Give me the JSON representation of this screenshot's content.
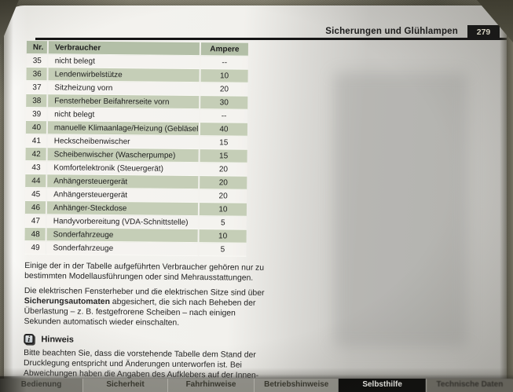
{
  "header": {
    "title": "Sicherungen und Glühlampen",
    "page_number": "279"
  },
  "table": {
    "columns": [
      "Nr.",
      "Verbraucher",
      "Ampere"
    ],
    "rows": [
      {
        "nr": "35",
        "verbraucher": "nicht belegt",
        "ampere": "--"
      },
      {
        "nr": "36",
        "verbraucher": "Lendenwirbelstütze",
        "ampere": "10"
      },
      {
        "nr": "37",
        "verbraucher": "Sitzheizung vorn",
        "ampere": "20"
      },
      {
        "nr": "38",
        "verbraucher": "Fensterheber Beifahrerseite vorn",
        "ampere": "30"
      },
      {
        "nr": "39",
        "verbraucher": "nicht belegt",
        "ampere": "--"
      },
      {
        "nr": "40",
        "verbraucher": "manuelle Klimaanlage/Heizung (Gebläselüfter)",
        "ampere": "40"
      },
      {
        "nr": "41",
        "verbraucher": "Heckscheibenwischer",
        "ampere": "15"
      },
      {
        "nr": "42",
        "verbraucher": "Scheibenwischer (Wascherpumpe)",
        "ampere": "15"
      },
      {
        "nr": "43",
        "verbraucher": "Komfortelektronik (Steuergerät)",
        "ampere": "20"
      },
      {
        "nr": "44",
        "verbraucher": "Anhängersteuergerät",
        "ampere": "20"
      },
      {
        "nr": "45",
        "verbraucher": "Anhängersteuergerät",
        "ampere": "20"
      },
      {
        "nr": "46",
        "verbraucher": "Anhänger-Steckdose",
        "ampere": "10"
      },
      {
        "nr": "47",
        "verbraucher": "Handyvorbereitung (VDA-Schnittstelle)",
        "ampere": "5"
      },
      {
        "nr": "48",
        "verbraucher": "Sonderfahrzeuge",
        "ampere": "10"
      },
      {
        "nr": "49",
        "verbraucher": "Sonderfahrzeuge",
        "ampere": "5"
      }
    ]
  },
  "paragraphs": [
    {
      "lines": [
        [
          {
            "t": "Einige der in der Tabelle aufgeführten Verbraucher gehören nur zu"
          }
        ],
        [
          {
            "t": "bestimmten Modellausführungen oder sind Mehrausstattungen."
          }
        ]
      ]
    },
    {
      "lines": [
        [
          {
            "t": "Die elektrischen Fensterheber und die elektrischen Sitze sind über"
          }
        ],
        [
          {
            "t": "Sicherungsautomaten",
            "b": true
          },
          {
            "t": " abgesichert, die sich nach Beheben der"
          }
        ],
        [
          {
            "t": "Überlastung – z. B. festgefrorene Scheiben – nach einigen"
          }
        ],
        [
          {
            "t": "Sekunden automatisch wieder einschalten."
          }
        ]
      ]
    }
  ],
  "note": {
    "icon": "info-icon",
    "icon_glyph": "i",
    "title": "Hinweis",
    "lines": [
      [
        {
          "t": "Bitte beachten Sie, dass die vorstehende Tabelle dem Stand der"
        }
      ],
      [
        {
          "t": "Drucklegung entspricht und Änderungen unterworfen ist. Bei"
        }
      ],
      [
        {
          "t": "Abweichungen haben die Angaben des Aufklebers auf der Innen-"
        }
      ],
      [
        {
          "t": "seite des Sicherungsdeckels stets Vorrang. "
        },
        {
          "t": "■",
          "marker": true
        }
      ]
    ]
  },
  "tabs": [
    {
      "label": "Bedienung",
      "active": false
    },
    {
      "label": "Sicherheit",
      "active": false
    },
    {
      "label": "Fahrhinweise",
      "active": false
    },
    {
      "label": "Betriebshinweise",
      "active": false
    },
    {
      "label": "Selbsthilfe",
      "active": true
    },
    {
      "label": "Technische Daten",
      "active": false
    }
  ],
  "colors": {
    "row_green": "#c5ceb7",
    "header_green": "#b3bfa7",
    "page_white": "#f3f2ee",
    "shadow_gray": "#c6c5c1",
    "rule_black": "#161616",
    "tab_gray": "#94938c",
    "active_tab_black": "#0d0d0c"
  }
}
